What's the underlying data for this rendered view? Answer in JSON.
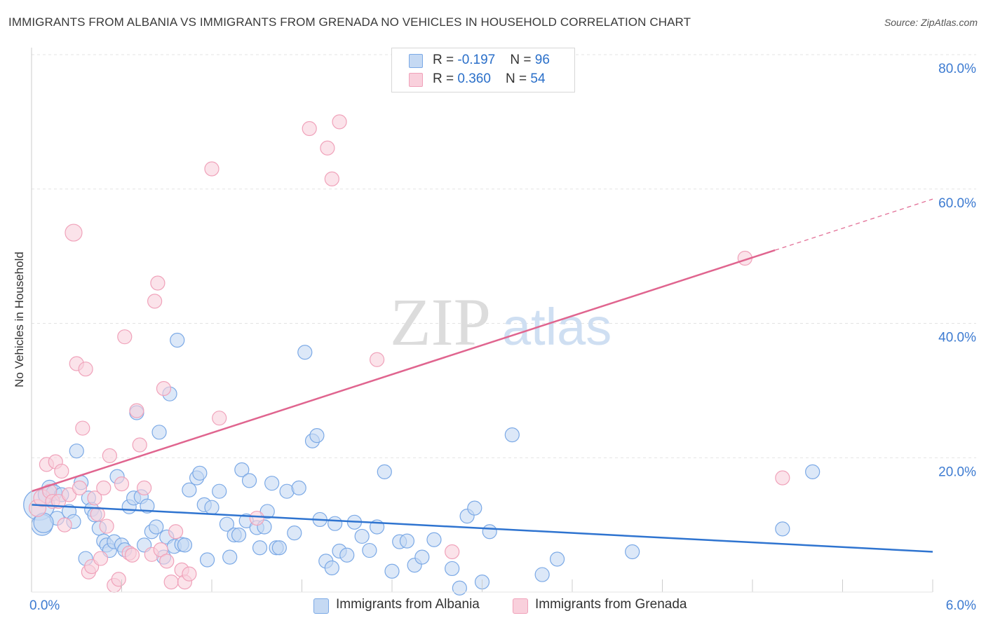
{
  "title": "IMMIGRANTS FROM ALBANIA VS IMMIGRANTS FROM GRENADA NO VEHICLES IN HOUSEHOLD CORRELATION CHART",
  "source": "Source: ZipAtlas.com",
  "watermark": {
    "zip": "ZIP",
    "atlas": "atlas"
  },
  "legend": {
    "albania": {
      "r_label": "R = ",
      "r_value": "-0.197",
      "n_label": "N = ",
      "n_value": "96"
    },
    "grenada": {
      "r_label": "R = ",
      "r_value": "0.360",
      "n_label": "N = ",
      "n_value": "54"
    }
  },
  "chart_data": {
    "type": "scatter",
    "title": "IMMIGRANTS FROM ALBANIA VS IMMIGRANTS FROM GRENADA NO VEHICLES IN HOUSEHOLD CORRELATION CHART",
    "xlabel": "",
    "ylabel": "No Vehicles in Household",
    "xlim": [
      0,
      6
    ],
    "ylim": [
      0,
      80
    ],
    "x_tick_labels": [
      {
        "value": 0,
        "label": "0.0%"
      },
      {
        "value": 6,
        "label": "6.0%"
      }
    ],
    "y_tick_labels": [
      {
        "value": 20,
        "label": "20.0%"
      },
      {
        "value": 40,
        "label": "40.0%"
      },
      {
        "value": 60,
        "label": "60.0%"
      },
      {
        "value": 80,
        "label": "80.0%"
      }
    ],
    "grid": true,
    "legend_position": "top-center",
    "series": [
      {
        "name": "Immigrants from Albania",
        "color": "#7ba9e6",
        "fill": "#c5d9f3",
        "line_color": "#2f74d0",
        "trend": {
          "x0": 0,
          "y0": 13.0,
          "x1": 6,
          "y1": 6.0,
          "solid_until": 6
        },
        "points": [
          [
            0.05,
            13.0
          ],
          [
            0.07,
            10.0
          ],
          [
            0.1,
            14.5
          ],
          [
            0.12,
            15.5
          ],
          [
            0.15,
            14.8
          ],
          [
            0.17,
            11.0
          ],
          [
            0.2,
            14.5
          ],
          [
            0.25,
            12.0
          ],
          [
            0.28,
            10.5
          ],
          [
            0.3,
            21.0
          ],
          [
            0.33,
            16.3
          ],
          [
            0.36,
            5.0
          ],
          [
            0.38,
            14.0
          ],
          [
            0.4,
            12.3
          ],
          [
            0.42,
            11.5
          ],
          [
            0.45,
            9.5
          ],
          [
            0.48,
            7.6
          ],
          [
            0.5,
            7.0
          ],
          [
            0.52,
            6.2
          ],
          [
            0.55,
            7.5
          ],
          [
            0.57,
            17.2
          ],
          [
            0.6,
            7.0
          ],
          [
            0.62,
            6.3
          ],
          [
            0.65,
            12.7
          ],
          [
            0.68,
            14.0
          ],
          [
            0.7,
            26.7
          ],
          [
            0.73,
            14.2
          ],
          [
            0.75,
            7.0
          ],
          [
            0.77,
            12.8
          ],
          [
            0.8,
            9.0
          ],
          [
            0.83,
            9.7
          ],
          [
            0.85,
            23.8
          ],
          [
            0.88,
            5.2
          ],
          [
            0.9,
            8.2
          ],
          [
            0.92,
            29.5
          ],
          [
            0.95,
            6.8
          ],
          [
            0.97,
            37.5
          ],
          [
            1.0,
            7.1
          ],
          [
            1.02,
            7.0
          ],
          [
            1.05,
            15.2
          ],
          [
            1.1,
            17.0
          ],
          [
            1.12,
            17.7
          ],
          [
            1.15,
            13.0
          ],
          [
            1.17,
            4.8
          ],
          [
            1.2,
            12.6
          ],
          [
            1.25,
            15.0
          ],
          [
            1.3,
            10.1
          ],
          [
            1.32,
            5.2
          ],
          [
            1.35,
            8.5
          ],
          [
            1.38,
            8.5
          ],
          [
            1.4,
            18.2
          ],
          [
            1.43,
            10.6
          ],
          [
            1.45,
            16.6
          ],
          [
            1.5,
            9.6
          ],
          [
            1.52,
            6.6
          ],
          [
            1.55,
            9.7
          ],
          [
            1.57,
            12.0
          ],
          [
            1.6,
            16.2
          ],
          [
            1.63,
            6.6
          ],
          [
            1.65,
            6.6
          ],
          [
            1.7,
            15.0
          ],
          [
            1.75,
            8.8
          ],
          [
            1.78,
            15.5
          ],
          [
            1.82,
            35.7
          ],
          [
            1.87,
            22.5
          ],
          [
            1.9,
            23.3
          ],
          [
            1.92,
            10.8
          ],
          [
            1.96,
            4.6
          ],
          [
            2.0,
            3.6
          ],
          [
            2.02,
            10.2
          ],
          [
            2.05,
            6.1
          ],
          [
            2.1,
            5.5
          ],
          [
            2.15,
            10.4
          ],
          [
            2.2,
            8.3
          ],
          [
            2.25,
            6.2
          ],
          [
            2.3,
            9.7
          ],
          [
            2.35,
            17.9
          ],
          [
            2.4,
            3.1
          ],
          [
            2.45,
            7.5
          ],
          [
            2.5,
            7.6
          ],
          [
            2.55,
            4.0
          ],
          [
            2.6,
            5.2
          ],
          [
            2.68,
            7.8
          ],
          [
            2.8,
            3.5
          ],
          [
            2.85,
            0.6
          ],
          [
            2.9,
            11.3
          ],
          [
            2.95,
            12.5
          ],
          [
            3.0,
            1.5
          ],
          [
            3.05,
            9.0
          ],
          [
            3.2,
            23.4
          ],
          [
            3.4,
            2.6
          ],
          [
            3.5,
            4.9
          ],
          [
            4.0,
            6.0
          ],
          [
            5.0,
            9.4
          ],
          [
            5.2,
            17.9
          ],
          [
            0.08,
            10.3
          ]
        ],
        "sizes": [
          44,
          30,
          24,
          22,
          22,
          20,
          20,
          20,
          20,
          20,
          20,
          20,
          20,
          20,
          20,
          20,
          20,
          20,
          20,
          20,
          20,
          20,
          20,
          20,
          20,
          20,
          20,
          20,
          20,
          20,
          20,
          20,
          20,
          20,
          20,
          20,
          20,
          20,
          20,
          20,
          20,
          20,
          20,
          20,
          20,
          20,
          20,
          20,
          20,
          20,
          20,
          20,
          20,
          20,
          20,
          20,
          20,
          20,
          20,
          20,
          20,
          20,
          20,
          20,
          20,
          20,
          20,
          20,
          20,
          20,
          20,
          20,
          20,
          20,
          20,
          20,
          20,
          20,
          20,
          20,
          20,
          20,
          20,
          20,
          20,
          20,
          20,
          20,
          20,
          20,
          20,
          20,
          20,
          20,
          20,
          28
        ]
      },
      {
        "name": "Immigrants from Grenada",
        "color": "#f0a2ba",
        "fill": "#f9d0dc",
        "line_color": "#e0658f",
        "trend": {
          "x0": 0,
          "y0": 15.0,
          "x1": 6,
          "y1": 58.5,
          "solid_until": 4.95
        },
        "points": [
          [
            0.04,
            12.5
          ],
          [
            0.07,
            14.0
          ],
          [
            0.1,
            19.0
          ],
          [
            0.12,
            15.0
          ],
          [
            0.14,
            13.5
          ],
          [
            0.16,
            19.4
          ],
          [
            0.18,
            13.5
          ],
          [
            0.2,
            18.0
          ],
          [
            0.22,
            10.0
          ],
          [
            0.25,
            14.5
          ],
          [
            0.28,
            53.5
          ],
          [
            0.3,
            34.0
          ],
          [
            0.32,
            15.5
          ],
          [
            0.34,
            24.4
          ],
          [
            0.36,
            33.2
          ],
          [
            0.38,
            3.0
          ],
          [
            0.4,
            3.8
          ],
          [
            0.42,
            14.0
          ],
          [
            0.44,
            11.6
          ],
          [
            0.46,
            5.0
          ],
          [
            0.48,
            15.5
          ],
          [
            0.5,
            9.8
          ],
          [
            0.52,
            20.3
          ],
          [
            0.55,
            1.0
          ],
          [
            0.58,
            1.9
          ],
          [
            0.6,
            16.1
          ],
          [
            0.62,
            38.0
          ],
          [
            0.65,
            5.8
          ],
          [
            0.67,
            5.5
          ],
          [
            0.7,
            27.0
          ],
          [
            0.72,
            21.9
          ],
          [
            0.75,
            15.5
          ],
          [
            0.8,
            5.6
          ],
          [
            0.82,
            43.3
          ],
          [
            0.84,
            46.0
          ],
          [
            0.86,
            6.3
          ],
          [
            0.88,
            30.3
          ],
          [
            0.9,
            4.6
          ],
          [
            0.93,
            1.5
          ],
          [
            0.96,
            9.0
          ],
          [
            1.0,
            3.3
          ],
          [
            1.02,
            1.5
          ],
          [
            1.05,
            2.7
          ],
          [
            1.2,
            63.0
          ],
          [
            1.25,
            25.9
          ],
          [
            1.5,
            11.0
          ],
          [
            1.85,
            69.0
          ],
          [
            1.97,
            66.1
          ],
          [
            2.0,
            61.5
          ],
          [
            2.05,
            70.0
          ],
          [
            2.3,
            34.6
          ],
          [
            2.8,
            6.0
          ],
          [
            4.75,
            49.7
          ],
          [
            5.0,
            17.0
          ]
        ],
        "sizes": [
          24,
          24,
          20,
          20,
          20,
          20,
          20,
          20,
          20,
          20,
          24,
          20,
          20,
          20,
          20,
          20,
          20,
          20,
          20,
          20,
          20,
          20,
          20,
          20,
          20,
          20,
          20,
          20,
          20,
          20,
          20,
          20,
          20,
          20,
          20,
          20,
          20,
          20,
          20,
          20,
          20,
          20,
          20,
          20,
          20,
          20,
          20,
          20,
          20,
          20,
          20,
          20,
          20,
          20
        ]
      }
    ]
  },
  "bottom_legend": {
    "albania_label": "Immigrants from Albania",
    "grenada_label": "Immigrants from Grenada"
  }
}
